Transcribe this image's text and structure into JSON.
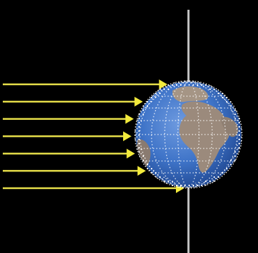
{
  "diagram": {
    "subject": "sunlight-rays-striking-earth",
    "ray_count": 7,
    "colors": {
      "background": "#000000",
      "ray": "#e8e04a",
      "ocean": "#3f74c8",
      "ocean_dark": "#2a56a6",
      "land": "#9b8a7c",
      "grid_dots": "#ffffff",
      "axis": "#c8c8c8"
    },
    "icons": {
      "earth": "globe-icon",
      "ray": "arrow-right-icon"
    }
  }
}
